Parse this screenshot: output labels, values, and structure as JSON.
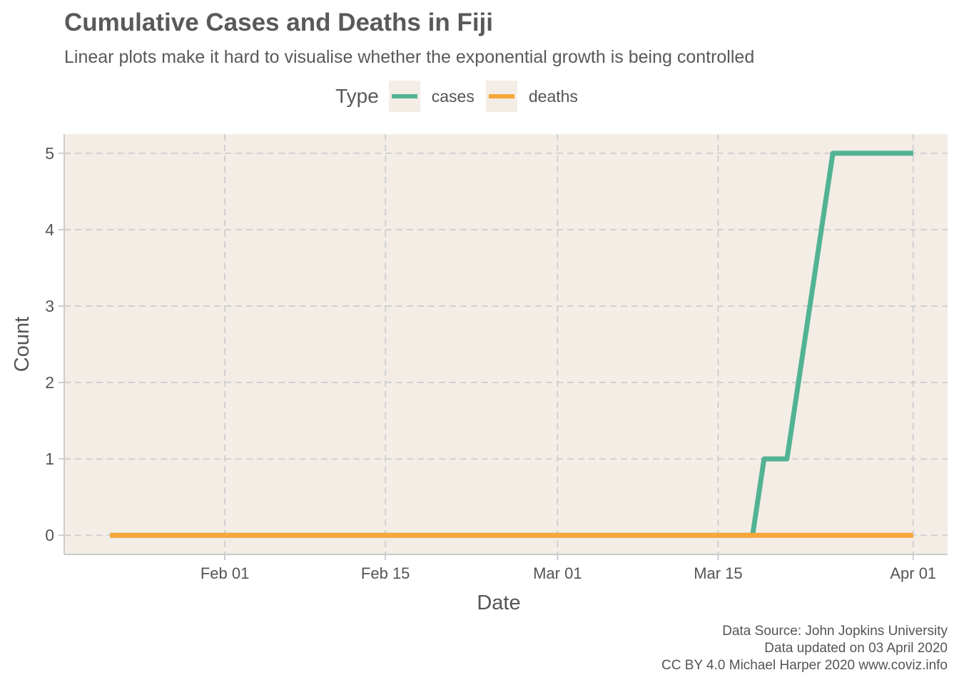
{
  "header": {
    "title": "Cumulative Cases and Deaths in Fiji",
    "subtitle": "Linear plots make it hard to visualise whether the exponential growth is being controlled"
  },
  "legend": {
    "title": "Type",
    "items": [
      {
        "label": "cases",
        "color": "#52b394"
      },
      {
        "label": "deaths",
        "color": "#f7a738"
      }
    ]
  },
  "caption": {
    "line1": "Data Source: John Jopkins University",
    "line2": "Data updated on 03 April 2020",
    "line3": "CC BY 4.0 Michael Harper 2020 www.coviz.info"
  },
  "colors": {
    "panel_background": "#f3ede6",
    "grid": "#d0d0d0",
    "axis_line": "#cccccc",
    "cases": "#52b394",
    "deaths": "#f7a738"
  },
  "chart_data": {
    "type": "line",
    "title": "Cumulative Cases and Deaths in Fiji",
    "subtitle": "Linear plots make it hard to visualise whether the exponential growth is being controlled",
    "xlabel": "Date",
    "ylabel": "Count",
    "x_ticks": [
      {
        "date": "2020-02-01",
        "label": "Feb 01"
      },
      {
        "date": "2020-02-15",
        "label": "Feb 15"
      },
      {
        "date": "2020-03-01",
        "label": "Mar 01"
      },
      {
        "date": "2020-03-15",
        "label": "Mar 15"
      },
      {
        "date": "2020-04-01",
        "label": "Apr 01"
      }
    ],
    "y_ticks": [
      0,
      1,
      2,
      3,
      4,
      5
    ],
    "xlim": [
      "2020-01-18",
      "2020-04-04"
    ],
    "ylim": [
      -0.25,
      5.25
    ],
    "grid": true,
    "legend_position": "top",
    "series": [
      {
        "name": "cases",
        "color": "#52b394",
        "points": [
          {
            "x": "2020-01-22",
            "y": 0
          },
          {
            "x": "2020-03-18",
            "y": 0
          },
          {
            "x": "2020-03-19",
            "y": 1
          },
          {
            "x": "2020-03-21",
            "y": 1
          },
          {
            "x": "2020-03-25",
            "y": 5
          },
          {
            "x": "2020-04-01",
            "y": 5
          }
        ]
      },
      {
        "name": "deaths",
        "color": "#f7a738",
        "points": [
          {
            "x": "2020-01-22",
            "y": 0
          },
          {
            "x": "2020-04-01",
            "y": 0
          }
        ]
      }
    ]
  }
}
